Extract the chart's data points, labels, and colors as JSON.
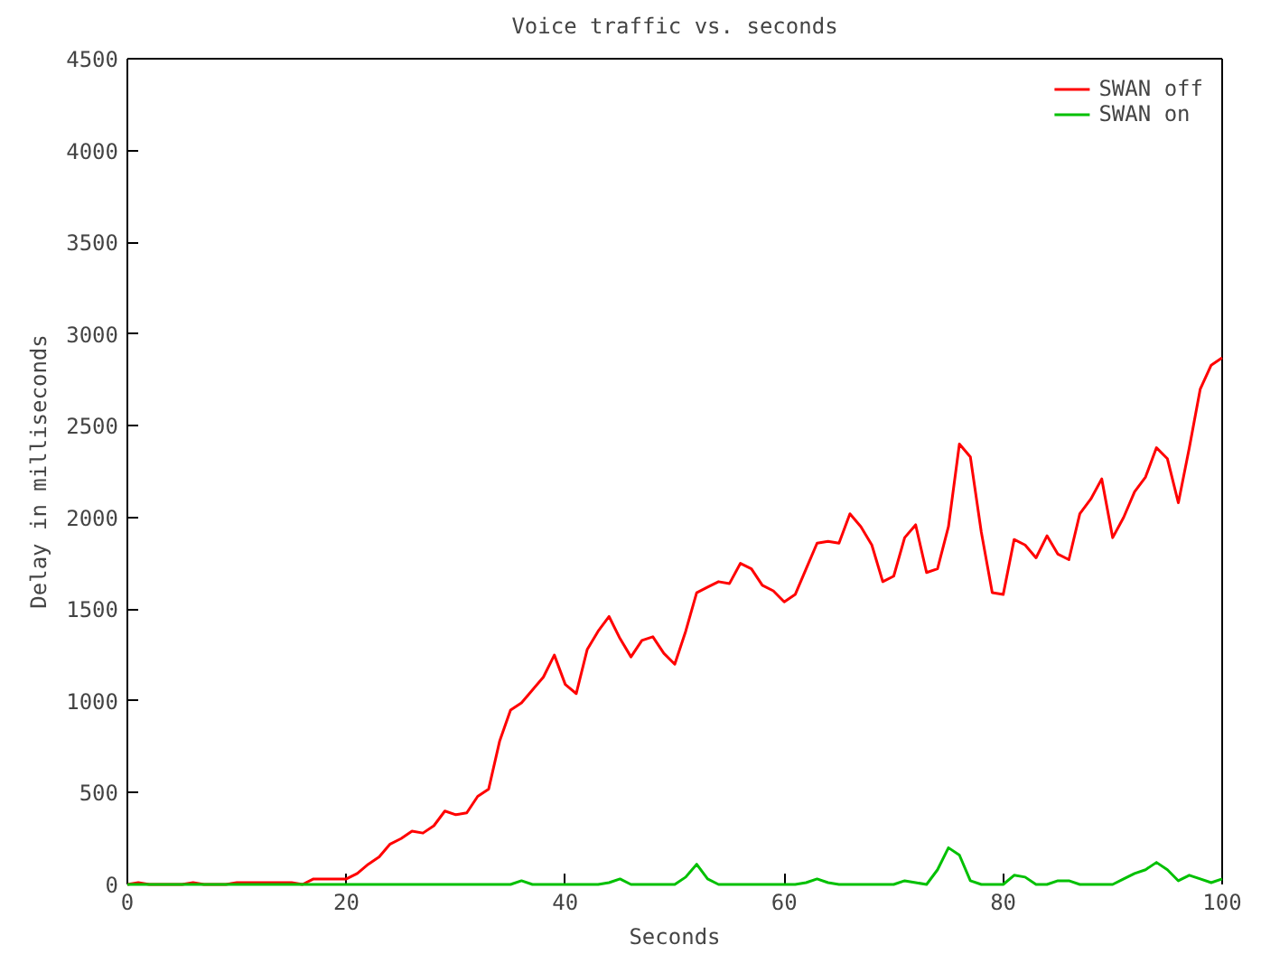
{
  "chart_data": {
    "type": "line",
    "title": "Voice traffic vs. seconds",
    "xlabel": "Seconds",
    "ylabel": "Delay in milliseconds",
    "x": [
      0,
      1,
      2,
      3,
      4,
      5,
      6,
      7,
      8,
      9,
      10,
      11,
      12,
      13,
      14,
      15,
      16,
      17,
      18,
      19,
      20,
      21,
      22,
      23,
      24,
      25,
      26,
      27,
      28,
      29,
      30,
      31,
      32,
      33,
      34,
      35,
      36,
      37,
      38,
      39,
      40,
      41,
      42,
      43,
      44,
      45,
      46,
      47,
      48,
      49,
      50,
      51,
      52,
      53,
      54,
      55,
      56,
      57,
      58,
      59,
      60,
      61,
      62,
      63,
      64,
      65,
      66,
      67,
      68,
      69,
      70,
      71,
      72,
      73,
      74,
      75,
      76,
      77,
      78,
      79,
      80,
      81,
      82,
      83,
      84,
      85,
      86,
      87,
      88,
      89,
      90,
      91,
      92,
      93,
      94,
      95,
      96,
      97,
      98,
      99,
      100
    ],
    "series": [
      {
        "name": "SWAN off",
        "color": "#ff0000",
        "values": [
          0,
          10,
          0,
          0,
          0,
          0,
          10,
          0,
          0,
          0,
          10,
          10,
          10,
          10,
          10,
          10,
          0,
          30,
          30,
          30,
          30,
          60,
          110,
          150,
          220,
          250,
          290,
          280,
          320,
          400,
          380,
          390,
          480,
          520,
          780,
          950,
          990,
          1060,
          1130,
          1250,
          1090,
          1040,
          1280,
          1380,
          1460,
          1340,
          1240,
          1330,
          1350,
          1260,
          1200,
          1380,
          1590,
          1620,
          1650,
          1640,
          1750,
          1720,
          1630,
          1600,
          1540,
          1580,
          1720,
          1860,
          1870,
          1860,
          2020,
          1950,
          1850,
          1650,
          1680,
          1890,
          1960,
          1700,
          1720,
          1950,
          2400,
          2330,
          1920,
          1590,
          1580,
          1880,
          1850,
          1780,
          1900,
          1800,
          1770,
          2020,
          2100,
          2210,
          1890,
          2000,
          2140,
          2220,
          2380,
          2320,
          2080,
          2380,
          2700,
          2830,
          2870
        ]
      },
      {
        "name": "SWAN on",
        "color": "#00c000",
        "values": [
          0,
          0,
          0,
          0,
          0,
          0,
          0,
          0,
          0,
          0,
          0,
          0,
          0,
          0,
          0,
          0,
          0,
          0,
          0,
          0,
          0,
          0,
          0,
          0,
          0,
          0,
          0,
          0,
          0,
          0,
          0,
          0,
          0,
          0,
          0,
          0,
          20,
          0,
          0,
          0,
          0,
          0,
          0,
          0,
          10,
          30,
          0,
          0,
          0,
          0,
          0,
          40,
          110,
          30,
          0,
          0,
          0,
          0,
          0,
          0,
          0,
          0,
          10,
          30,
          10,
          0,
          0,
          0,
          0,
          0,
          0,
          20,
          10,
          0,
          80,
          200,
          160,
          20,
          0,
          0,
          0,
          50,
          40,
          0,
          0,
          20,
          20,
          0,
          0,
          0,
          0,
          30,
          60,
          80,
          120,
          80,
          20,
          50,
          30,
          10,
          30
        ]
      }
    ],
    "xlim": [
      0,
      100
    ],
    "ylim": [
      0,
      4500
    ],
    "xticks": [
      0,
      20,
      40,
      60,
      80,
      100
    ],
    "yticks": [
      0,
      500,
      1000,
      1500,
      2000,
      2500,
      3000,
      3500,
      4000,
      4500
    ],
    "grid": false,
    "legend": "top right",
    "marker": "none",
    "line_style": "solid"
  }
}
